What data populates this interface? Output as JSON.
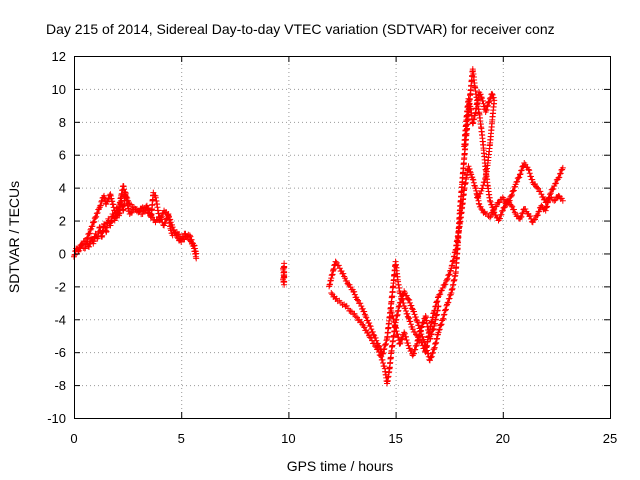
{
  "chart_data": {
    "type": "scatter",
    "title": "Day 215 of 2014, Sidereal Day-to-day VTEC variation (SDTVAR) for receiver conz",
    "xlabel": "GPS time / hours",
    "ylabel": "SDTVAR / TECUs",
    "xlim": [
      0,
      25
    ],
    "ylim": [
      -10,
      12
    ],
    "xticks": [
      0,
      5,
      10,
      15,
      20,
      25
    ],
    "yticks": [
      -10,
      -8,
      -6,
      -4,
      -2,
      0,
      2,
      4,
      6,
      8,
      10,
      12
    ],
    "grid": true,
    "marker": "+",
    "colors": {
      "series": "#ff0000"
    },
    "series": [
      {
        "name": "SDTVAR",
        "segments": [
          [
            [
              0.0,
              -0.2
            ],
            [
              0.1,
              0.3
            ],
            [
              0.2,
              0.1
            ],
            [
              0.3,
              0.5
            ],
            [
              0.5,
              0.3
            ],
            [
              0.6,
              0.7
            ],
            [
              0.7,
              0.4
            ],
            [
              0.8,
              0.9
            ],
            [
              0.9,
              0.6
            ],
            [
              1.0,
              1.2
            ],
            [
              1.1,
              0.9
            ],
            [
              1.2,
              1.6
            ],
            [
              1.3,
              1.0
            ],
            [
              1.4,
              1.8
            ],
            [
              1.5,
              1.3
            ],
            [
              1.6,
              2.1
            ],
            [
              1.7,
              1.7
            ],
            [
              1.8,
              2.4
            ],
            [
              1.9,
              2.0
            ],
            [
              2.0,
              2.8
            ],
            [
              2.1,
              2.3
            ],
            [
              2.2,
              3.2
            ],
            [
              2.3,
              2.6
            ],
            [
              2.4,
              3.7
            ],
            [
              2.5,
              2.9
            ],
            [
              2.6,
              2.4
            ],
            [
              2.8,
              2.7
            ],
            [
              3.0,
              2.5
            ],
            [
              3.2,
              2.8
            ],
            [
              3.4,
              2.6
            ],
            [
              3.6,
              2.3
            ],
            [
              3.8,
              1.9
            ],
            [
              4.0,
              2.2
            ],
            [
              4.2,
              1.7
            ],
            [
              4.4,
              2.4
            ],
            [
              4.5,
              1.5
            ],
            [
              4.6,
              1.1
            ],
            [
              4.8,
              1.3
            ],
            [
              5.0,
              0.9
            ],
            [
              5.2,
              1.2
            ],
            [
              5.4,
              0.8
            ],
            [
              5.6,
              0.5
            ],
            [
              5.7,
              0.0
            ]
          ],
          [
            [
              0.2,
              0.2
            ],
            [
              0.4,
              0.6
            ],
            [
              0.6,
              0.9
            ],
            [
              0.8,
              1.5
            ],
            [
              1.0,
              2.2
            ],
            [
              1.2,
              2.8
            ],
            [
              1.3,
              3.2
            ],
            [
              1.4,
              3.5
            ],
            [
              1.5,
              3.0
            ],
            [
              1.6,
              3.3
            ],
            [
              1.7,
              3.6
            ],
            [
              1.8,
              3.0
            ],
            [
              1.9,
              2.6
            ],
            [
              2.0,
              2.2
            ],
            [
              2.1,
              2.8
            ],
            [
              2.2,
              3.5
            ],
            [
              2.3,
              4.1
            ],
            [
              2.4,
              3.5
            ],
            [
              2.6,
              3.0
            ],
            [
              2.8,
              2.8
            ],
            [
              3.0,
              2.6
            ],
            [
              3.2,
              2.4
            ],
            [
              3.4,
              2.9
            ],
            [
              3.6,
              2.2
            ],
            [
              3.7,
              3.7
            ],
            [
              3.8,
              3.5
            ],
            [
              4.0,
              2.0
            ],
            [
              4.2,
              2.6
            ],
            [
              4.4,
              2.3
            ],
            [
              4.6,
              1.6
            ],
            [
              4.8,
              1.0
            ],
            [
              5.0,
              0.7
            ],
            [
              5.2,
              1.0
            ],
            [
              5.4,
              1.1
            ],
            [
              5.6,
              0.3
            ],
            [
              5.7,
              -0.3
            ]
          ],
          [
            [
              9.75,
              -0.9
            ],
            [
              9.8,
              -1.3
            ],
            [
              9.75,
              -1.6
            ],
            [
              9.8,
              -1.9
            ],
            [
              9.8,
              -0.6
            ]
          ],
          [
            [
              11.9,
              -2.0
            ],
            [
              12.0,
              -1.5
            ],
            [
              12.1,
              -1.0
            ],
            [
              12.2,
              -0.5
            ],
            [
              12.4,
              -0.9
            ],
            [
              12.6,
              -1.4
            ],
            [
              12.8,
              -1.9
            ],
            [
              13.0,
              -2.2
            ],
            [
              13.2,
              -2.8
            ],
            [
              13.4,
              -3.2
            ],
            [
              13.6,
              -3.8
            ],
            [
              13.8,
              -4.4
            ],
            [
              14.0,
              -5.0
            ],
            [
              14.2,
              -5.6
            ],
            [
              14.4,
              -6.1
            ],
            [
              14.6,
              -5.2
            ],
            [
              14.7,
              -4.1
            ],
            [
              14.8,
              -3.0
            ],
            [
              14.9,
              -1.8
            ],
            [
              15.0,
              -0.5
            ],
            [
              15.1,
              -1.6
            ],
            [
              15.2,
              -2.4
            ],
            [
              15.4,
              -3.2
            ],
            [
              15.6,
              -3.9
            ],
            [
              15.8,
              -4.6
            ],
            [
              16.0,
              -5.0
            ],
            [
              16.2,
              -5.4
            ],
            [
              16.4,
              -6.0
            ],
            [
              16.6,
              -4.6
            ],
            [
              16.8,
              -3.5
            ],
            [
              17.0,
              -2.6
            ],
            [
              17.2,
              -2.1
            ],
            [
              17.4,
              -1.6
            ],
            [
              17.6,
              -0.9
            ],
            [
              17.8,
              0.2
            ],
            [
              18.0,
              1.8
            ],
            [
              18.1,
              2.8
            ],
            [
              18.2,
              3.9
            ],
            [
              18.3,
              4.6
            ],
            [
              18.4,
              5.3
            ],
            [
              18.5,
              4.9
            ],
            [
              18.6,
              4.5
            ],
            [
              18.7,
              4.1
            ],
            [
              18.8,
              3.6
            ],
            [
              18.9,
              3.0
            ],
            [
              19.0,
              2.7
            ],
            [
              19.2,
              2.4
            ],
            [
              19.4,
              2.2
            ],
            [
              19.6,
              2.7
            ],
            [
              19.8,
              3.1
            ],
            [
              20.0,
              3.4
            ],
            [
              20.2,
              3.0
            ],
            [
              20.4,
              3.5
            ],
            [
              20.6,
              4.2
            ],
            [
              20.8,
              4.8
            ],
            [
              21.0,
              5.5
            ],
            [
              21.2,
              5.1
            ],
            [
              21.4,
              4.3
            ],
            [
              21.6,
              4.0
            ],
            [
              21.8,
              3.6
            ],
            [
              22.0,
              3.1
            ],
            [
              22.2,
              3.4
            ],
            [
              22.4,
              3.2
            ],
            [
              22.6,
              3.5
            ],
            [
              22.8,
              3.2
            ]
          ],
          [
            [
              12.0,
              -2.4
            ],
            [
              12.3,
              -2.9
            ],
            [
              12.6,
              -3.1
            ],
            [
              12.9,
              -3.5
            ],
            [
              13.2,
              -3.9
            ],
            [
              13.5,
              -4.4
            ],
            [
              13.8,
              -5.1
            ],
            [
              14.1,
              -5.7
            ],
            [
              14.3,
              -6.2
            ],
            [
              14.5,
              -7.0
            ],
            [
              14.6,
              -7.9
            ],
            [
              14.7,
              -7.2
            ],
            [
              14.8,
              -6.0
            ],
            [
              15.0,
              -4.2
            ],
            [
              15.2,
              -3.0
            ],
            [
              15.4,
              -2.3
            ],
            [
              15.6,
              -2.8
            ],
            [
              15.8,
              -3.4
            ],
            [
              16.0,
              -4.1
            ],
            [
              16.2,
              -4.9
            ],
            [
              16.4,
              -5.6
            ],
            [
              16.6,
              -6.5
            ],
            [
              16.8,
              -5.8
            ],
            [
              17.0,
              -4.8
            ],
            [
              17.2,
              -4.0
            ],
            [
              17.4,
              -3.1
            ],
            [
              17.6,
              -2.4
            ],
            [
              17.8,
              -1.2
            ],
            [
              17.9,
              0.5
            ],
            [
              18.0,
              2.6
            ],
            [
              18.1,
              4.2
            ],
            [
              18.2,
              5.8
            ],
            [
              18.3,
              7.2
            ],
            [
              18.4,
              8.6
            ],
            [
              18.5,
              9.9
            ],
            [
              18.6,
              11.2
            ],
            [
              18.7,
              10.1
            ],
            [
              18.8,
              9.3
            ],
            [
              18.9,
              8.5
            ],
            [
              19.0,
              7.6
            ],
            [
              19.1,
              6.4
            ],
            [
              19.2,
              5.1
            ],
            [
              19.3,
              4.1
            ],
            [
              19.4,
              3.2
            ],
            [
              19.6,
              2.5
            ],
            [
              19.8,
              2.0
            ],
            [
              20.0,
              2.6
            ],
            [
              20.2,
              3.2
            ],
            [
              20.4,
              2.9
            ],
            [
              20.6,
              2.4
            ],
            [
              20.8,
              2.1
            ],
            [
              21.0,
              2.7
            ],
            [
              21.2,
              2.4
            ],
            [
              21.4,
              1.9
            ],
            [
              21.6,
              2.3
            ],
            [
              21.8,
              2.9
            ],
            [
              22.0,
              2.6
            ],
            [
              22.2,
              3.6
            ],
            [
              22.4,
              4.1
            ],
            [
              22.6,
              4.6
            ],
            [
              22.8,
              5.2
            ]
          ],
          [
            [
              18.2,
              6.5
            ],
            [
              18.3,
              8.1
            ],
            [
              18.4,
              9.4
            ],
            [
              18.5,
              8.8
            ],
            [
              18.6,
              7.9
            ],
            [
              18.7,
              8.4
            ],
            [
              18.8,
              9.1
            ],
            [
              18.9,
              9.8
            ],
            [
              19.0,
              9.5
            ],
            [
              19.1,
              9.1
            ],
            [
              19.2,
              8.6
            ],
            [
              19.3,
              9.0
            ],
            [
              19.4,
              9.4
            ],
            [
              19.5,
              9.7
            ],
            [
              19.6,
              9.3
            ],
            [
              19.5,
              8.0
            ],
            [
              19.4,
              6.6
            ],
            [
              19.3,
              5.5
            ],
            [
              19.2,
              4.6
            ],
            [
              19.0,
              3.8
            ],
            [
              18.8,
              3.4
            ]
          ],
          [
            [
              14.8,
              -3.5
            ],
            [
              15.0,
              -4.5
            ],
            [
              15.2,
              -5.5
            ],
            [
              15.4,
              -4.8
            ],
            [
              15.6,
              -5.6
            ],
            [
              15.8,
              -6.2
            ],
            [
              16.0,
              -5.5
            ],
            [
              16.2,
              -4.5
            ],
            [
              16.4,
              -3.8
            ],
            [
              16.6,
              -5.2
            ],
            [
              16.8,
              -4.4
            ],
            [
              17.0,
              -3.2
            ]
          ]
        ]
      }
    ]
  }
}
